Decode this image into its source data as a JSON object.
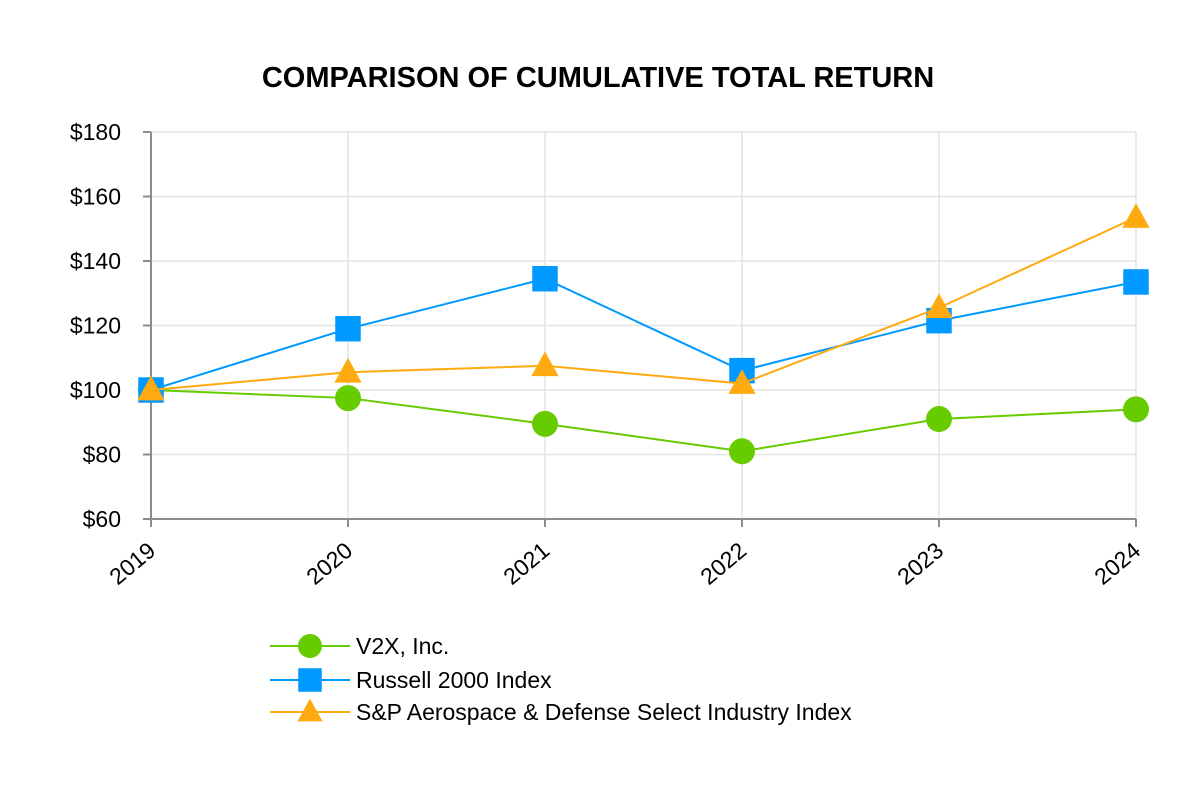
{
  "chart_data": {
    "type": "line",
    "title": "COMPARISON OF CUMULATIVE TOTAL RETURN",
    "xlabel": "",
    "ylabel": "",
    "categories": [
      "2019",
      "2020",
      "2021",
      "2022",
      "2023",
      "2024"
    ],
    "ylim": [
      60,
      180
    ],
    "yticks": [
      60,
      80,
      100,
      120,
      140,
      160,
      180
    ],
    "ytick_labels": [
      "$60",
      "$80",
      "$100",
      "$120",
      "$140",
      "$160",
      "$180"
    ],
    "grid": true,
    "legend_position": "bottom-center",
    "series": [
      {
        "name": "V2X, Inc.",
        "color": "#66cc00",
        "marker": "circle",
        "values": [
          100,
          97.5,
          89.5,
          81,
          91,
          94
        ]
      },
      {
        "name": "Russell 2000 Index",
        "color": "#0099ff",
        "marker": "square",
        "values": [
          100,
          119,
          134.5,
          106,
          121.5,
          133.5
        ]
      },
      {
        "name": "S&P Aerospace & Defense Select Industry Index",
        "color": "#ffaa11",
        "marker": "triangle",
        "values": [
          100,
          105.5,
          107.5,
          102,
          125.5,
          153.5
        ]
      }
    ]
  }
}
